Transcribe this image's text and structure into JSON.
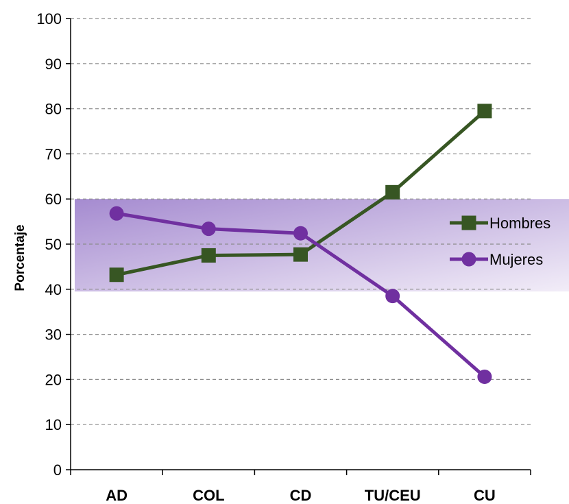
{
  "chart_data": {
    "type": "line",
    "categories": [
      "AD",
      "COL",
      "CD",
      "TU/CEU",
      "CU"
    ],
    "series": [
      {
        "name": "Hombres",
        "values": [
          43.2,
          47.5,
          47.7,
          61.5,
          79.5
        ],
        "color": "#375623",
        "marker": "square"
      },
      {
        "name": "Mujeres",
        "values": [
          56.8,
          53.4,
          52.4,
          38.5,
          20.6
        ],
        "color": "#7030A0",
        "marker": "circle"
      }
    ],
    "ylabel": "Porcentaje",
    "xlabel": "",
    "ylim": [
      0,
      100
    ],
    "yticks": [
      0,
      10,
      20,
      30,
      40,
      50,
      60,
      70,
      80,
      90,
      100
    ],
    "grid": "horizontal dashed",
    "highlight_band": {
      "from": 39.5,
      "to": 60,
      "color": "#9B7BC8"
    },
    "legend_position": "right"
  }
}
